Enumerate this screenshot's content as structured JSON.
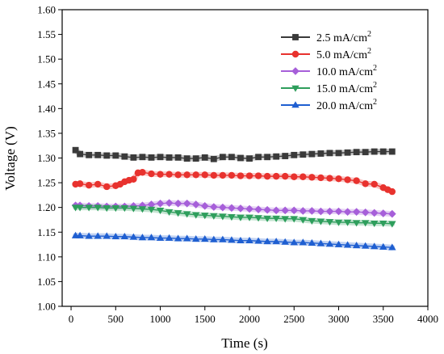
{
  "chart_data": {
    "type": "line",
    "xlabel": "Time (s)",
    "ylabel": "Voltage (V)",
    "xlim": [
      -100,
      4000
    ],
    "ylim": [
      1.0,
      1.6
    ],
    "x_ticks": [
      0,
      500,
      1000,
      1500,
      2000,
      2500,
      3000,
      3500,
      4000
    ],
    "y_ticks": [
      1.0,
      1.05,
      1.1,
      1.15,
      1.2,
      1.25,
      1.3,
      1.35,
      1.4,
      1.45,
      1.5,
      1.55,
      1.6
    ],
    "y_tick_labels": [
      "1.00",
      "1.05",
      "1.10",
      "1.15",
      "1.20",
      "1.25",
      "1.30",
      "1.35",
      "1.40",
      "1.45",
      "1.50",
      "1.55",
      "1.60"
    ],
    "legend_position": "top-right",
    "grid": false,
    "series": [
      {
        "name": "2.5 mA/cm",
        "name_sup": "2",
        "color": "#3a3a3a",
        "marker": "square",
        "x": [
          50,
          100,
          200,
          300,
          400,
          500,
          600,
          700,
          800,
          900,
          1000,
          1100,
          1200,
          1300,
          1400,
          1500,
          1600,
          1700,
          1800,
          1900,
          2000,
          2100,
          2200,
          2300,
          2400,
          2500,
          2600,
          2700,
          2800,
          2900,
          3000,
          3100,
          3200,
          3300,
          3400,
          3500,
          3600
        ],
        "y": [
          1.316,
          1.308,
          1.306,
          1.306,
          1.305,
          1.305,
          1.303,
          1.301,
          1.302,
          1.301,
          1.302,
          1.301,
          1.301,
          1.299,
          1.299,
          1.301,
          1.298,
          1.302,
          1.302,
          1.3,
          1.299,
          1.302,
          1.302,
          1.303,
          1.304,
          1.306,
          1.307,
          1.308,
          1.309,
          1.31,
          1.31,
          1.311,
          1.312,
          1.312,
          1.313,
          1.313,
          1.313
        ]
      },
      {
        "name": "5.0 mA/cm",
        "name_sup": "2",
        "color": "#e8322e",
        "marker": "circle",
        "x": [
          50,
          100,
          200,
          300,
          400,
          500,
          550,
          600,
          650,
          700,
          750,
          800,
          900,
          1000,
          1100,
          1200,
          1300,
          1400,
          1500,
          1600,
          1700,
          1800,
          1900,
          2000,
          2100,
          2200,
          2300,
          2400,
          2500,
          2600,
          2700,
          2800,
          2900,
          3000,
          3100,
          3200,
          3300,
          3400,
          3500,
          3550,
          3600
        ],
        "y": [
          1.247,
          1.248,
          1.245,
          1.247,
          1.242,
          1.244,
          1.247,
          1.252,
          1.255,
          1.257,
          1.27,
          1.271,
          1.268,
          1.267,
          1.267,
          1.266,
          1.266,
          1.266,
          1.266,
          1.265,
          1.265,
          1.265,
          1.264,
          1.264,
          1.264,
          1.263,
          1.263,
          1.263,
          1.262,
          1.262,
          1.261,
          1.26,
          1.259,
          1.258,
          1.256,
          1.254,
          1.248,
          1.247,
          1.24,
          1.236,
          1.232
        ]
      },
      {
        "name": "10.0 mA/cm",
        "name_sup": "2",
        "color": "#a65fd9",
        "marker": "diamond",
        "x": [
          50,
          100,
          200,
          300,
          400,
          500,
          600,
          700,
          800,
          900,
          1000,
          1100,
          1200,
          1300,
          1400,
          1500,
          1600,
          1700,
          1800,
          1900,
          2000,
          2100,
          2200,
          2300,
          2400,
          2500,
          2600,
          2700,
          2800,
          2900,
          3000,
          3100,
          3200,
          3300,
          3400,
          3500,
          3600
        ],
        "y": [
          1.204,
          1.204,
          1.203,
          1.203,
          1.202,
          1.202,
          1.202,
          1.203,
          1.204,
          1.206,
          1.208,
          1.209,
          1.208,
          1.208,
          1.206,
          1.203,
          1.201,
          1.2,
          1.199,
          1.198,
          1.197,
          1.196,
          1.195,
          1.194,
          1.194,
          1.194,
          1.193,
          1.193,
          1.192,
          1.192,
          1.192,
          1.191,
          1.191,
          1.19,
          1.189,
          1.188,
          1.187
        ]
      },
      {
        "name": "15.0 mA/cm",
        "name_sup": "2",
        "color": "#2e9e5c",
        "marker": "triangle-down",
        "x": [
          50,
          100,
          200,
          300,
          400,
          500,
          600,
          700,
          800,
          900,
          1000,
          1100,
          1200,
          1300,
          1400,
          1500,
          1600,
          1700,
          1800,
          1900,
          2000,
          2100,
          2200,
          2300,
          2400,
          2500,
          2600,
          2700,
          2800,
          2900,
          3000,
          3100,
          3200,
          3300,
          3400,
          3500,
          3600
        ],
        "y": [
          1.2,
          1.2,
          1.2,
          1.2,
          1.199,
          1.199,
          1.199,
          1.198,
          1.197,
          1.196,
          1.194,
          1.191,
          1.189,
          1.187,
          1.185,
          1.184,
          1.183,
          1.182,
          1.181,
          1.18,
          1.18,
          1.179,
          1.178,
          1.178,
          1.177,
          1.177,
          1.175,
          1.173,
          1.172,
          1.171,
          1.17,
          1.17,
          1.169,
          1.169,
          1.168,
          1.168,
          1.167
        ]
      },
      {
        "name": "20.0 mA/cm",
        "name_sup": "2",
        "color": "#1f5fd1",
        "marker": "triangle-up",
        "x": [
          50,
          100,
          200,
          300,
          400,
          500,
          600,
          700,
          800,
          900,
          1000,
          1100,
          1200,
          1300,
          1400,
          1500,
          1600,
          1700,
          1800,
          1900,
          2000,
          2100,
          2200,
          2300,
          2400,
          2500,
          2600,
          2700,
          2800,
          2900,
          3000,
          3100,
          3200,
          3300,
          3400,
          3500,
          3600
        ],
        "y": [
          1.143,
          1.143,
          1.142,
          1.142,
          1.142,
          1.141,
          1.141,
          1.14,
          1.139,
          1.139,
          1.138,
          1.138,
          1.137,
          1.137,
          1.136,
          1.136,
          1.135,
          1.135,
          1.134,
          1.133,
          1.133,
          1.132,
          1.131,
          1.131,
          1.13,
          1.129,
          1.129,
          1.128,
          1.127,
          1.126,
          1.125,
          1.124,
          1.123,
          1.122,
          1.121,
          1.12,
          1.119
        ]
      }
    ]
  }
}
